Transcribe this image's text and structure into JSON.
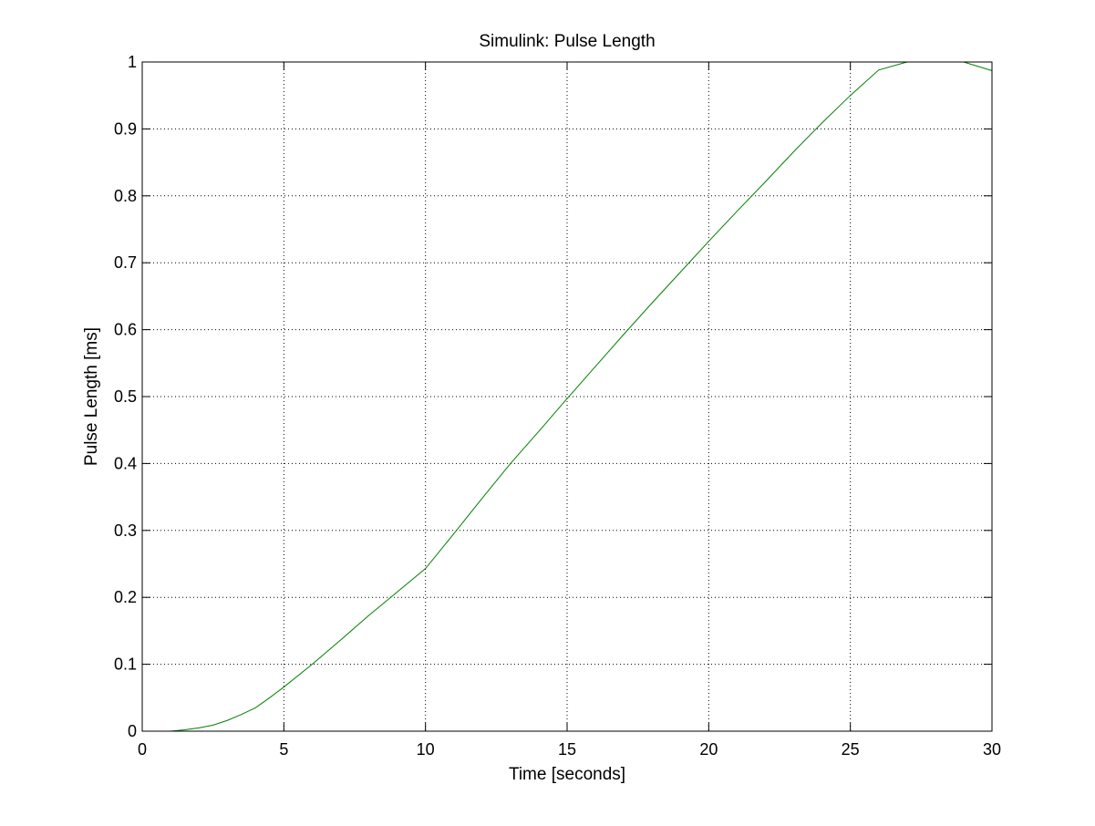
{
  "chart_data": {
    "type": "line",
    "title": "Simulink: Pulse Length",
    "xlabel": "Time [seconds]",
    "ylabel": "Pulse Length [ms]",
    "xlim": [
      0,
      30
    ],
    "ylim": [
      0,
      1
    ],
    "xticks": [
      0,
      5,
      10,
      15,
      20,
      25,
      30
    ],
    "yticks": [
      0,
      0.1,
      0.2,
      0.3,
      0.4,
      0.5,
      0.6,
      0.7,
      0.8,
      0.9,
      1
    ],
    "grid": true,
    "legend": "none",
    "series": [
      {
        "color": "#008000",
        "x": [
          1,
          1.5,
          2,
          2.5,
          3,
          3.5,
          4,
          4.5,
          5,
          6,
          7,
          8,
          9,
          10,
          11,
          12,
          13,
          14,
          15,
          16,
          17,
          18,
          19,
          20,
          21,
          22,
          23,
          24,
          25,
          26,
          27,
          28,
          29,
          30
        ],
        "y": [
          0.0,
          0.002,
          0.005,
          0.009,
          0.016,
          0.025,
          0.035,
          0.05,
          0.066,
          0.1,
          0.136,
          0.173,
          0.208,
          0.243,
          0.295,
          0.348,
          0.4,
          0.448,
          0.497,
          0.545,
          0.593,
          0.64,
          0.686,
          0.732,
          0.777,
          0.821,
          0.866,
          0.909,
          0.95,
          0.988,
          1.0,
          1.0,
          1.0,
          0.987
        ]
      }
    ]
  }
}
